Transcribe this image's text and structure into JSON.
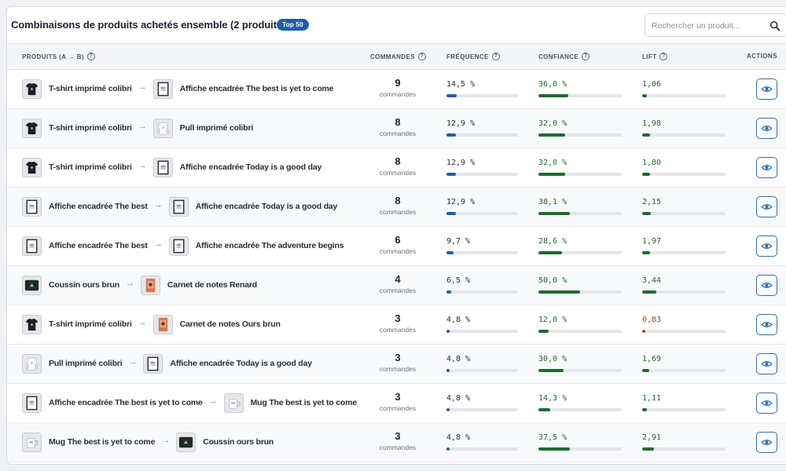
{
  "header": {
    "title": "Combinaisons de produits achetés ensemble (2 produits)",
    "badge": "Top 50",
    "search_placeholder": "Rechercher un produit..."
  },
  "columns": {
    "products": "PRODUITS (A → B)",
    "orders": "COMMANDES",
    "frequency": "FRÉQUENCE",
    "confidence": "CONFIANCE",
    "lift": "LIFT",
    "actions": "ACTIONS"
  },
  "colors": {
    "frequency_bar": "#1f5fa8",
    "confidence_bar": "#1d6b2e",
    "lift_bar_positive": "#1d6b2e",
    "lift_bar_negative": "#c0392b",
    "lift_text_negative": "#c0392b"
  },
  "rows": [
    {
      "a": {
        "name": "T-shirt imprimé colibri",
        "icon": "tshirt"
      },
      "b": {
        "name": "Affiche encadrée The best is yet to come",
        "icon": "poster"
      },
      "orders": "9",
      "orders_label": "commandes",
      "frequency": "14,5 %",
      "frequency_value": 14.5,
      "confidence": "36,0 %",
      "confidence_value": 36.0,
      "lift": "1,06",
      "lift_value": 1.06
    },
    {
      "a": {
        "name": "T-shirt imprimé colibri",
        "icon": "tshirt"
      },
      "b": {
        "name": "Pull imprimé colibri",
        "icon": "sweater"
      },
      "orders": "8",
      "orders_label": "commandes",
      "frequency": "12,9 %",
      "frequency_value": 12.9,
      "confidence": "32,0 %",
      "confidence_value": 32.0,
      "lift": "1,98",
      "lift_value": 1.98
    },
    {
      "a": {
        "name": "T-shirt imprimé colibri",
        "icon": "tshirt"
      },
      "b": {
        "name": "Affiche encadrée Today is a good day",
        "icon": "poster"
      },
      "orders": "8",
      "orders_label": "commandes",
      "frequency": "12,9 %",
      "frequency_value": 12.9,
      "confidence": "32,0 %",
      "confidence_value": 32.0,
      "lift": "1,80",
      "lift_value": 1.8
    },
    {
      "a": {
        "name": "Affiche encadrée The best",
        "icon": "poster"
      },
      "b": {
        "name": "Affiche encadrée Today is a good day",
        "icon": "poster"
      },
      "orders": "8",
      "orders_label": "commandes",
      "frequency": "12,9 %",
      "frequency_value": 12.9,
      "confidence": "38,1 %",
      "confidence_value": 38.1,
      "lift": "2,15",
      "lift_value": 2.15
    },
    {
      "a": {
        "name": "Affiche encadrée The best",
        "icon": "poster"
      },
      "b": {
        "name": "Affiche encadrée The adventure begins",
        "icon": "poster"
      },
      "orders": "6",
      "orders_label": "commandes",
      "frequency": "9,7 %",
      "frequency_value": 9.7,
      "confidence": "28,6 %",
      "confidence_value": 28.6,
      "lift": "1,97",
      "lift_value": 1.97
    },
    {
      "a": {
        "name": "Coussin ours brun",
        "icon": "cushion"
      },
      "b": {
        "name": "Carnet de notes Renard",
        "icon": "notebook"
      },
      "orders": "4",
      "orders_label": "commandes",
      "frequency": "6,5 %",
      "frequency_value": 6.5,
      "confidence": "50,0 %",
      "confidence_value": 50.0,
      "lift": "3,44",
      "lift_value": 3.44
    },
    {
      "a": {
        "name": "T-shirt imprimé colibri",
        "icon": "tshirt"
      },
      "b": {
        "name": "Carnet de notes Ours brun",
        "icon": "notebook"
      },
      "orders": "3",
      "orders_label": "commandes",
      "frequency": "4,8 %",
      "frequency_value": 4.8,
      "confidence": "12,0 %",
      "confidence_value": 12.0,
      "lift": "0,83",
      "lift_value": 0.83
    },
    {
      "a": {
        "name": "Pull imprimé colibri",
        "icon": "sweater"
      },
      "b": {
        "name": "Affiche encadrée Today is a good day",
        "icon": "poster"
      },
      "orders": "3",
      "orders_label": "commandes",
      "frequency": "4,8 %",
      "frequency_value": 4.8,
      "confidence": "30,0 %",
      "confidence_value": 30.0,
      "lift": "1,69",
      "lift_value": 1.69
    },
    {
      "a": {
        "name": "Affiche encadrée The best is yet to come",
        "icon": "poster"
      },
      "b": {
        "name": "Mug The best is yet to come",
        "icon": "mug"
      },
      "orders": "3",
      "orders_label": "commandes",
      "frequency": "4,8 %",
      "frequency_value": 4.8,
      "confidence": "14,3 %",
      "confidence_value": 14.3,
      "lift": "1,11",
      "lift_value": 1.11
    },
    {
      "a": {
        "name": "Mug The best is yet to come",
        "icon": "mug"
      },
      "b": {
        "name": "Coussin ours brun",
        "icon": "cushion"
      },
      "orders": "3",
      "orders_label": "commandes",
      "frequency": "4,8 %",
      "frequency_value": 4.8,
      "confidence": "37,5 %",
      "confidence_value": 37.5,
      "lift": "2,91",
      "lift_value": 2.91
    }
  ]
}
